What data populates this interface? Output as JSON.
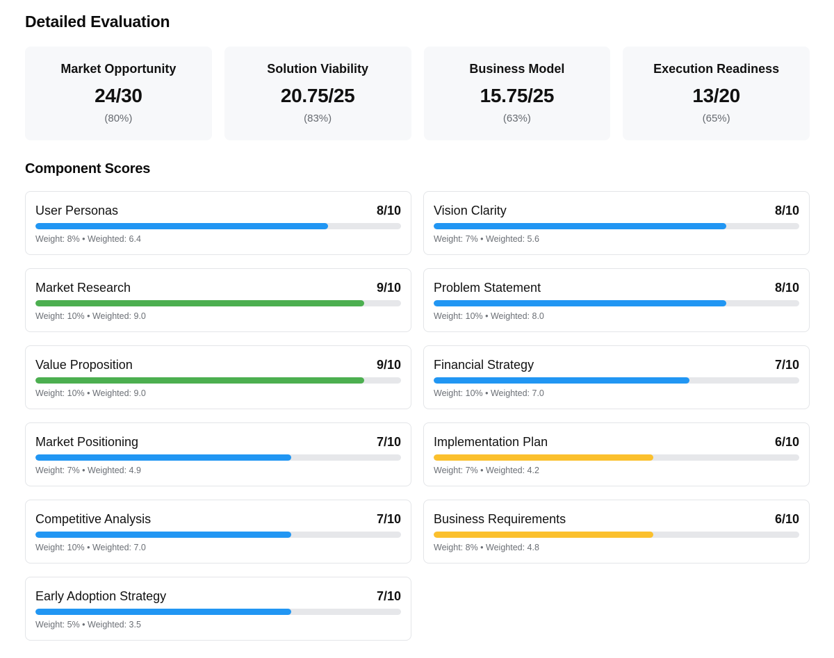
{
  "page": {
    "title": "Detailed Evaluation",
    "components_title": "Component Scores"
  },
  "colors": {
    "blue": "#2196f3",
    "green": "#4caf50",
    "yellow": "#fbc02d",
    "track": "#e6e7ea"
  },
  "summary": [
    {
      "name": "Market Opportunity",
      "score": "24/30",
      "percent": "(80%)"
    },
    {
      "name": "Solution Viability",
      "score": "20.75/25",
      "percent": "(83%)"
    },
    {
      "name": "Business Model",
      "score": "15.75/25",
      "percent": "(63%)"
    },
    {
      "name": "Execution Readiness",
      "score": "13/20",
      "percent": "(65%)"
    }
  ],
  "components": [
    {
      "name": "User Personas",
      "score_text": "8/10",
      "score": 8,
      "max": 10,
      "color": "blue",
      "weight_text": "Weight: 8% • Weighted: 6.4"
    },
    {
      "name": "Vision Clarity",
      "score_text": "8/10",
      "score": 8,
      "max": 10,
      "color": "blue",
      "weight_text": "Weight: 7% • Weighted: 5.6"
    },
    {
      "name": "Market Research",
      "score_text": "9/10",
      "score": 9,
      "max": 10,
      "color": "green",
      "weight_text": "Weight: 10% • Weighted: 9.0"
    },
    {
      "name": "Problem Statement",
      "score_text": "8/10",
      "score": 8,
      "max": 10,
      "color": "blue",
      "weight_text": "Weight: 10% • Weighted: 8.0"
    },
    {
      "name": "Value Proposition",
      "score_text": "9/10",
      "score": 9,
      "max": 10,
      "color": "green",
      "weight_text": "Weight: 10% • Weighted: 9.0"
    },
    {
      "name": "Financial Strategy",
      "score_text": "7/10",
      "score": 7,
      "max": 10,
      "color": "blue",
      "weight_text": "Weight: 10% • Weighted: 7.0"
    },
    {
      "name": "Market Positioning",
      "score_text": "7/10",
      "score": 7,
      "max": 10,
      "color": "blue",
      "weight_text": "Weight: 7% • Weighted: 4.9"
    },
    {
      "name": "Implementation Plan",
      "score_text": "6/10",
      "score": 6,
      "max": 10,
      "color": "yellow",
      "weight_text": "Weight: 7% • Weighted: 4.2"
    },
    {
      "name": "Competitive Analysis",
      "score_text": "7/10",
      "score": 7,
      "max": 10,
      "color": "blue",
      "weight_text": "Weight: 10% • Weighted: 7.0"
    },
    {
      "name": "Business Requirements",
      "score_text": "6/10",
      "score": 6,
      "max": 10,
      "color": "yellow",
      "weight_text": "Weight: 8% • Weighted: 4.8"
    },
    {
      "name": "Early Adoption Strategy",
      "score_text": "7/10",
      "score": 7,
      "max": 10,
      "color": "blue",
      "weight_text": "Weight: 5% • Weighted: 3.5"
    }
  ]
}
